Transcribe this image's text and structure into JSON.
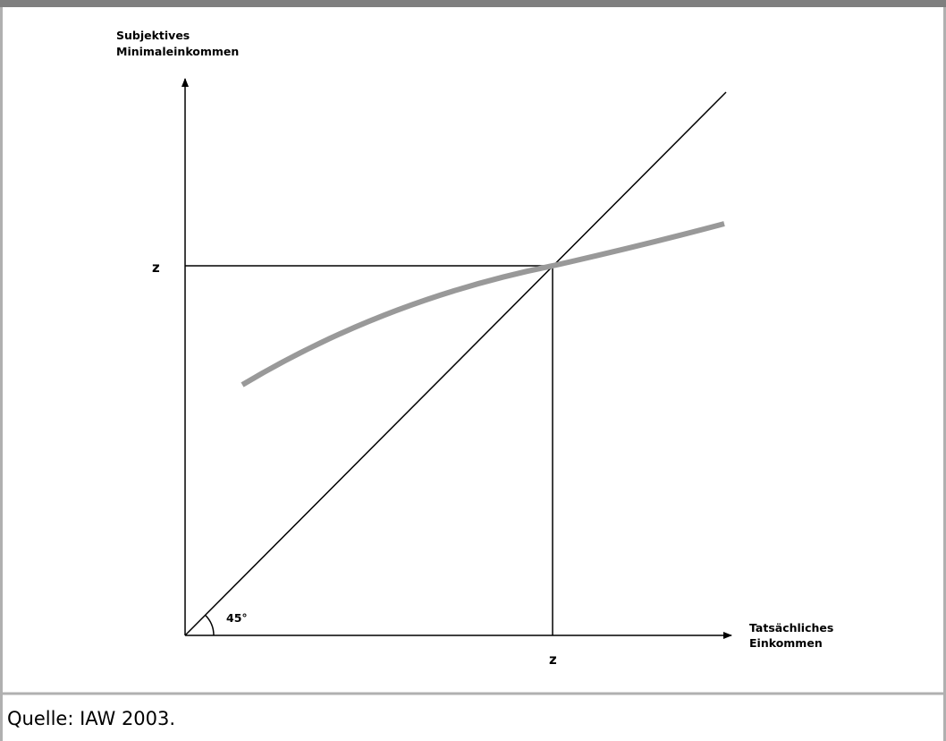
{
  "diagram": {
    "y_axis_label": [
      "Subjektives",
      "Minimaleinkommen"
    ],
    "x_axis_label": [
      "Tatsächliches",
      "Einkommen"
    ],
    "y_marker": "z",
    "x_marker": "z",
    "angle_label": "45°"
  },
  "source": "Quelle: IAW 2003."
}
